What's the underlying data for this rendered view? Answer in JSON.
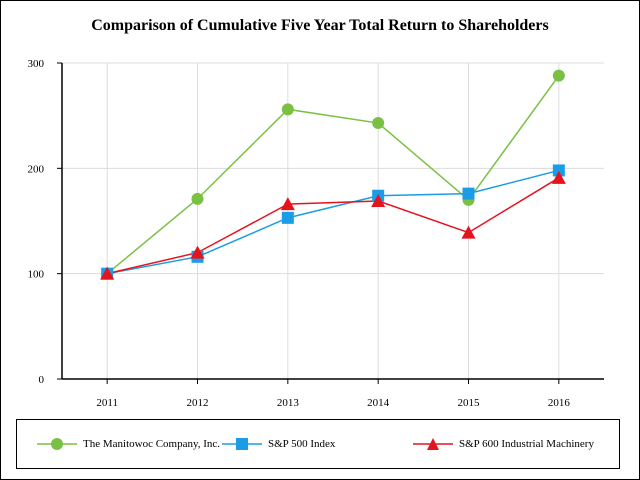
{
  "chart_data": {
    "type": "line",
    "title": "Comparison of Cumulative Five Year Total Return to Shareholders",
    "categories": [
      "2011",
      "2012",
      "2013",
      "2014",
      "2015",
      "2016"
    ],
    "ylim": [
      0,
      300
    ],
    "yticks": [
      "0",
      "100",
      "200",
      "300"
    ],
    "grid": true,
    "legend_position": "bottom",
    "series": [
      {
        "name": "The Manitowoc Company, Inc.",
        "values": [
          100,
          171,
          256,
          243,
          170,
          288
        ],
        "color": "#7ac143",
        "marker": "circle"
      },
      {
        "name": "S&P 500 Index",
        "values": [
          100,
          116,
          153,
          174,
          176,
          198
        ],
        "color": "#1b9ce6",
        "marker": "square"
      },
      {
        "name": "S&P 600 Industrial Machinery",
        "values": [
          100,
          120,
          166,
          169,
          139,
          191
        ],
        "color": "#e5131d",
        "marker": "triangle"
      }
    ]
  }
}
